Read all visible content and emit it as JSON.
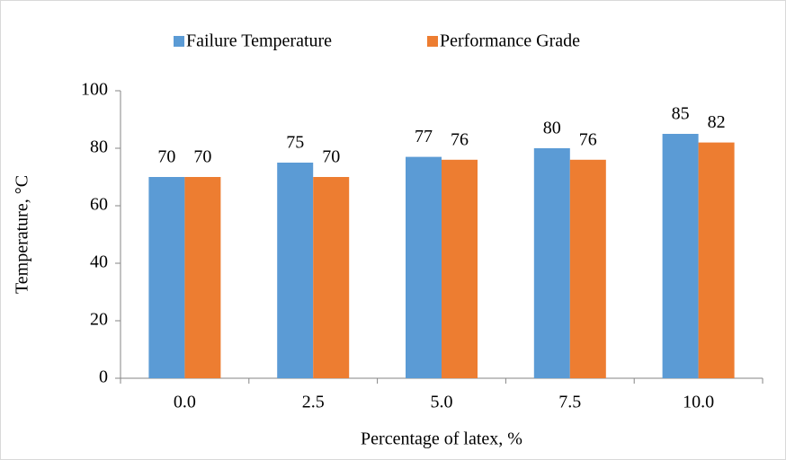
{
  "chart_data": {
    "type": "bar",
    "xlabel": "Percentage of latex, %",
    "ylabel": "Temperature, °C",
    "categories": [
      "0.0",
      "2.5",
      "5.0",
      "7.5",
      "10.0"
    ],
    "series": [
      {
        "name": "Failure Temperature",
        "color": "#5b9bd5",
        "values": [
          70,
          75,
          77,
          80,
          85
        ]
      },
      {
        "name": "Performance Grade",
        "color": "#ed7d31",
        "values": [
          70,
          70,
          76,
          76,
          82
        ]
      }
    ],
    "ylim": [
      0,
      100
    ],
    "yticks": [
      0,
      20,
      40,
      60,
      80,
      100
    ],
    "grid": false,
    "legend": "top"
  }
}
